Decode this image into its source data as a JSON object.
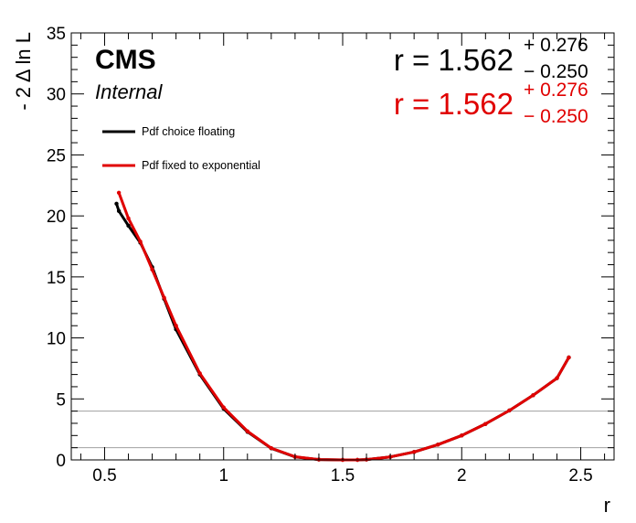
{
  "chart_data": {
    "type": "line",
    "title": "",
    "xlabel": "r",
    "ylabel": "- 2 Δ ln L",
    "xlim": [
      0.36,
      2.64
    ],
    "ylim": [
      0,
      35
    ],
    "x_ticks": [
      "0.5",
      "1",
      "1.5",
      "2",
      "2.5"
    ],
    "y_ticks": [
      "0",
      "5",
      "10",
      "15",
      "20",
      "25",
      "30",
      "35"
    ],
    "reference_lines": [
      1,
      4
    ],
    "series": [
      {
        "name": "Pdf choice floating",
        "color": "#000000",
        "x": [
          0.55,
          0.56,
          0.6,
          0.65,
          0.7,
          0.75,
          0.8,
          0.9,
          1.0,
          1.1,
          1.2,
          1.3,
          1.4,
          1.5,
          1.562,
          1.6,
          1.7,
          1.8,
          1.9,
          2.0,
          2.1,
          2.2,
          2.3,
          2.4,
          2.45
        ],
        "y": [
          21.0,
          20.4,
          19.2,
          17.8,
          15.8,
          13.2,
          10.7,
          7.0,
          4.2,
          2.3,
          0.95,
          0.25,
          0.03,
          0.0,
          0.0,
          0.03,
          0.25,
          0.65,
          1.25,
          2.0,
          2.95,
          4.05,
          5.3,
          6.7,
          8.4
        ]
      },
      {
        "name": "Pdf fixed to exponential",
        "color": "#e00000",
        "x": [
          0.56,
          0.6,
          0.65,
          0.7,
          0.75,
          0.8,
          0.9,
          1.0,
          1.1,
          1.2,
          1.3,
          1.4,
          1.5,
          1.562,
          1.6,
          1.7,
          1.8,
          1.9,
          2.0,
          2.1,
          2.2,
          2.3,
          2.4,
          2.45
        ],
        "y": [
          21.9,
          19.8,
          17.9,
          15.6,
          13.3,
          11.0,
          7.1,
          4.3,
          2.35,
          0.97,
          0.26,
          0.03,
          0.0,
          0.0,
          0.03,
          0.25,
          0.65,
          1.25,
          2.0,
          2.95,
          4.05,
          5.3,
          6.7,
          8.4
        ]
      }
    ],
    "annotations": {
      "experiment": "CMS",
      "status": "Internal",
      "results": [
        {
          "text": "r = 1.562",
          "up": "+ 0.276",
          "down": "− 0.250",
          "color": "#000000"
        },
        {
          "text": "r = 1.562",
          "up": "+ 0.276",
          "down": "− 0.250",
          "color": "#e00000"
        }
      ]
    }
  }
}
